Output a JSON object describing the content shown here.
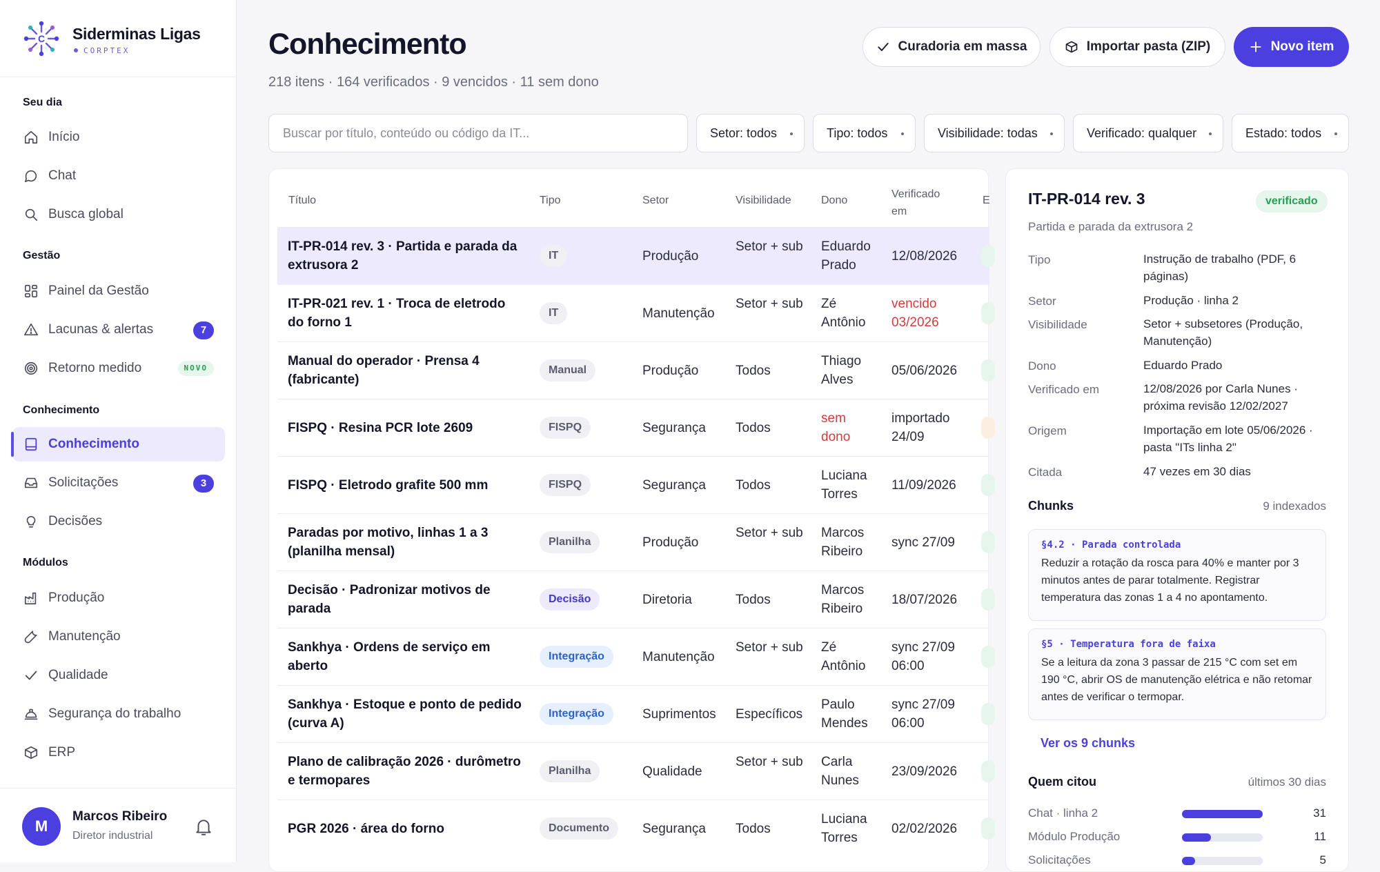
{
  "brand": {
    "name": "Siderminas Ligas",
    "subtitle": "CORPTEX"
  },
  "sidebar": {
    "sections": [
      {
        "label": "Seu dia"
      },
      {
        "label": "Gestão"
      },
      {
        "label": "Conhecimento"
      },
      {
        "label": "Módulos"
      }
    ],
    "items": [
      {
        "label": "Início",
        "icon": "home-icon"
      },
      {
        "label": "Chat",
        "icon": "chat-icon"
      },
      {
        "label": "Busca global",
        "icon": "search-icon"
      },
      {
        "label": "Painel da Gestão",
        "icon": "dashboard-icon"
      },
      {
        "label": "Lacunas & alertas",
        "icon": "alert-triangle-icon",
        "badge": "7"
      },
      {
        "label": "Retorno medido",
        "icon": "target-icon",
        "tag": "NOVO"
      },
      {
        "label": "Conhecimento",
        "icon": "book-icon",
        "active": true
      },
      {
        "label": "Solicitações",
        "icon": "inbox-icon",
        "badge": "3"
      },
      {
        "label": "Decisões",
        "icon": "lightbulb-icon"
      },
      {
        "label": "Produção",
        "icon": "factory-icon"
      },
      {
        "label": "Manutenção",
        "icon": "wrench-icon"
      },
      {
        "label": "Qualidade",
        "icon": "check-icon"
      },
      {
        "label": "Segurança do trabalho",
        "icon": "helmet-icon"
      },
      {
        "label": "ERP",
        "icon": "box-icon"
      }
    ]
  },
  "user": {
    "initial": "M",
    "name": "Marcos Ribeiro",
    "role": "Diretor industrial"
  },
  "header": {
    "title": "Conhecimento",
    "summary": "218 itens · 164 verificados · 9 vencidos · 11 sem dono",
    "buttons": {
      "bulk": "Curadoria em massa",
      "import": "Importar pasta (ZIP)",
      "new": "Novo item"
    }
  },
  "filters": {
    "search_placeholder": "Buscar por título, conteúdo ou código da IT...",
    "items": [
      "Setor: todos",
      "Tipo: todos",
      "Visibilidade: todas",
      "Verificado: qualquer",
      "Estado: todos"
    ]
  },
  "table": {
    "columns": [
      "Título",
      "Tipo",
      "Setor",
      "Visibilidade",
      "Dono",
      "Verificado em",
      "E"
    ],
    "rows": [
      {
        "title": "IT-PR-014 rev. 3 · Partida e parada da extrusora 2",
        "type": "IT",
        "sector": "Produção",
        "visibility": "Setor + sub",
        "owner": "Eduardo Prado",
        "verified": "12/08/2026"
      },
      {
        "title": "IT-PR-021 rev. 1 · Troca de eletrodo do forno 1",
        "type": "IT",
        "sector": "Manutenção",
        "visibility": "Setor + sub",
        "owner": "Zé Antônio",
        "verified": "vencido 03/2026"
      },
      {
        "title": "Manual do operador · Prensa 4 (fabricante)",
        "type": "Manual",
        "sector": "Produção",
        "visibility": "Todos",
        "owner": "Thiago Alves",
        "verified": "05/06/2026"
      },
      {
        "title": "FISPQ · Resina PCR lote 2609",
        "type": "FISPQ",
        "sector": "Segurança",
        "visibility": "Todos",
        "owner": "sem dono",
        "verified": "importado 24/09"
      },
      {
        "title": "FISPQ · Eletrodo grafite 500 mm",
        "type": "FISPQ",
        "sector": "Segurança",
        "visibility": "Todos",
        "owner": "Luciana Torres",
        "verified": "11/09/2026"
      },
      {
        "title": "Paradas por motivo, linhas 1 a 3 (planilha mensal)",
        "type": "Planilha",
        "sector": "Produção",
        "visibility": "Setor + sub",
        "owner": "Marcos Ribeiro",
        "verified": "sync 27/09"
      },
      {
        "title": "Decisão · Padronizar motivos de parada",
        "type": "Decisão",
        "sector": "Diretoria",
        "visibility": "Todos",
        "owner": "Marcos Ribeiro",
        "verified": "18/07/2026"
      },
      {
        "title": "Sankhya · Ordens de serviço em aberto",
        "type": "Integração",
        "sector": "Manutenção",
        "visibility": "Setor + sub",
        "owner": "Zé Antônio",
        "verified": "sync 27/09 06:00"
      },
      {
        "title": "Sankhya · Estoque e ponto de pedido (curva A)",
        "type": "Integração",
        "sector": "Suprimentos",
        "visibility": "Específicos",
        "owner": "Paulo Mendes",
        "verified": "sync 27/09 06:00"
      },
      {
        "title": "Plano de calibração 2026 · durômetro e termopares",
        "type": "Planilha",
        "sector": "Qualidade",
        "visibility": "Setor + sub",
        "owner": "Carla Nunes",
        "verified": "23/09/2026"
      },
      {
        "title": "PGR 2026 · área do forno",
        "type": "Documento",
        "sector": "Segurança",
        "visibility": "Todos",
        "owner": "Luciana Torres",
        "verified": "02/02/2026"
      }
    ]
  },
  "detail": {
    "title": "IT-PR-014 rev. 3",
    "badge": "verificado",
    "subtitle": "Partida e parada da extrusora 2",
    "fields": [
      {
        "k": "Tipo",
        "v": "Instrução de trabalho (PDF, 6 páginas)"
      },
      {
        "k": "Setor",
        "v": "Produção · linha 2"
      },
      {
        "k": "Visibilidade",
        "v": "Setor + subsetores (Produção, Manutenção)"
      },
      {
        "k": "Dono",
        "v": "Eduardo Prado"
      },
      {
        "k": "Verificado em",
        "v": "12/08/2026 por Carla Nunes · próxima revisão 12/02/2027"
      },
      {
        "k": "Origem",
        "v": "Importação em lote 05/06/2026 · pasta \"ITs linha 2\""
      },
      {
        "k": "Citada",
        "v": "47 vezes em 30 dias"
      }
    ],
    "chunks_title": "Chunks",
    "chunks_count": "9 indexados",
    "chunks": [
      {
        "head": "§4.2 · Parada controlada",
        "text": "Reduzir a rotação da rosca para 40% e manter por 3 minutos antes de parar totalmente. Registrar temperatura das zonas 1 a 4 no apontamento."
      },
      {
        "head": "§5 · Temperatura fora de faixa",
        "text": "Se a leitura da zona 3 passar de 215 °C com set em 190 °C, abrir OS de manutenção elétrica e não retomar antes de verificar o termopar."
      }
    ],
    "chunks_link": "Ver os 9 chunks",
    "cited_title": "Quem citou",
    "cited_period": "últimos 30 dias",
    "cited": [
      {
        "label": "Chat · linha 2",
        "value": 31
      },
      {
        "label": "Módulo Produção",
        "value": 11
      },
      {
        "label": "Solicitações",
        "value": 5
      }
    ]
  }
}
